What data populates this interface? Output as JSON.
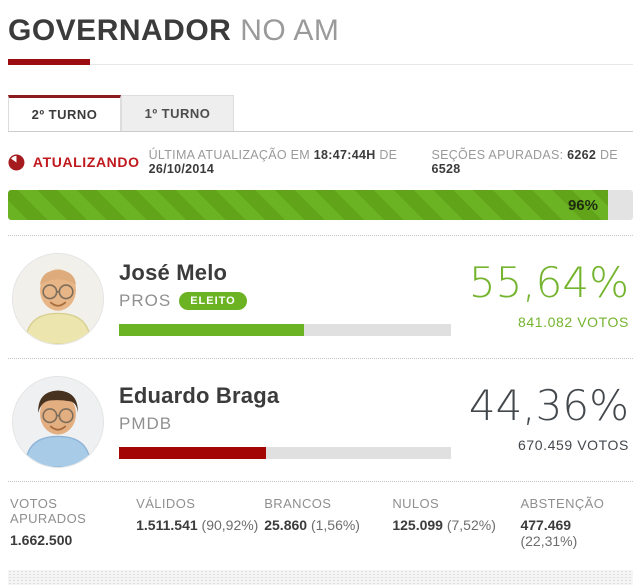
{
  "header": {
    "title_strong": "GOVERNADOR",
    "title_light": "NO AM"
  },
  "tabs": {
    "second_round": "2º TURNO",
    "first_round": "1º TURNO"
  },
  "status": {
    "updating_label": "ATUALIZANDO",
    "last_update_prefix": "ÚLTIMA ATUALIZAÇÃO EM",
    "last_update_time": "18:47:44H",
    "last_update_connector": "DE",
    "last_update_date": "26/10/2014",
    "sections_label": "SEÇÕES APURADAS:",
    "sections_counted": "6262",
    "sections_connector": "DE",
    "sections_total": "6528",
    "updating_icon": "pie-clock-icon",
    "accent_red": "#9b0d10"
  },
  "progress": {
    "percent": 96,
    "label": "96%",
    "fill_color": "#6cb324"
  },
  "candidates": [
    {
      "name": "José Melo",
      "party": "PROS",
      "badge": "ELEITO",
      "percent_label": "55,64%",
      "percent_value": 55.64,
      "votes": "841.082 VOTOS",
      "bar_color": "#6cb324"
    },
    {
      "name": "Eduardo Braga",
      "party": "PMDB",
      "badge": "",
      "percent_label": "44,36%",
      "percent_value": 44.36,
      "votes": "670.459 VOTOS",
      "bar_color": "#a30505"
    }
  ],
  "summary": [
    {
      "label": "VOTOS APURADOS",
      "value": "1.662.500",
      "detail": ""
    },
    {
      "label": "VÁLIDOS",
      "value": "1.511.541",
      "detail": "(90,92%)"
    },
    {
      "label": "BRANCOS",
      "value": "25.860",
      "detail": "(1,56%)"
    },
    {
      "label": "NULOS",
      "value": "125.099",
      "detail": "(7,52%)"
    },
    {
      "label": "ABSTENÇÃO",
      "value": "477.469",
      "detail": "(22,31%)"
    }
  ]
}
